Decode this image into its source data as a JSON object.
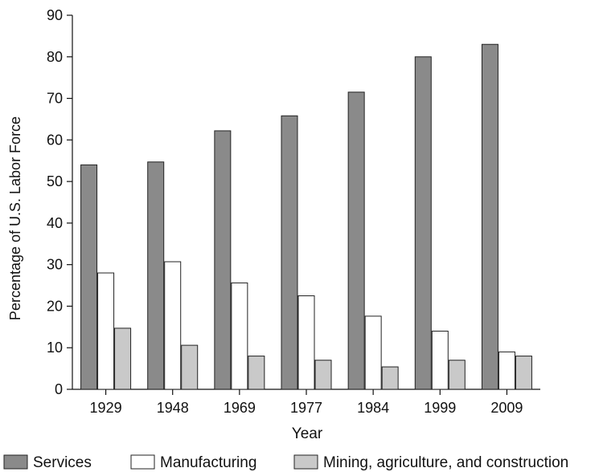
{
  "chart_data": {
    "type": "bar",
    "title": "",
    "xlabel": "Year",
    "ylabel": "Percentage of U.S. Labor Force",
    "categories": [
      "1929",
      "1948",
      "1969",
      "1977",
      "1984",
      "1999",
      "2009"
    ],
    "ylim": [
      0,
      90
    ],
    "yticks": [
      0,
      10,
      20,
      30,
      40,
      50,
      60,
      70,
      80,
      90
    ],
    "grid": false,
    "legend_position": "bottom",
    "series": [
      {
        "name": "Services",
        "color": "#8a8a8a",
        "values": [
          54,
          54.7,
          62.2,
          65.8,
          71.5,
          80,
          83
        ]
      },
      {
        "name": "Manufacturing",
        "color": "#ffffff",
        "values": [
          28,
          30.7,
          25.6,
          22.5,
          17.6,
          14,
          9
        ]
      },
      {
        "name": "Mining, agriculture, and construction",
        "color": "#c9c9c9",
        "values": [
          14.7,
          10.6,
          8,
          7,
          5.4,
          7,
          8
        ]
      }
    ]
  }
}
